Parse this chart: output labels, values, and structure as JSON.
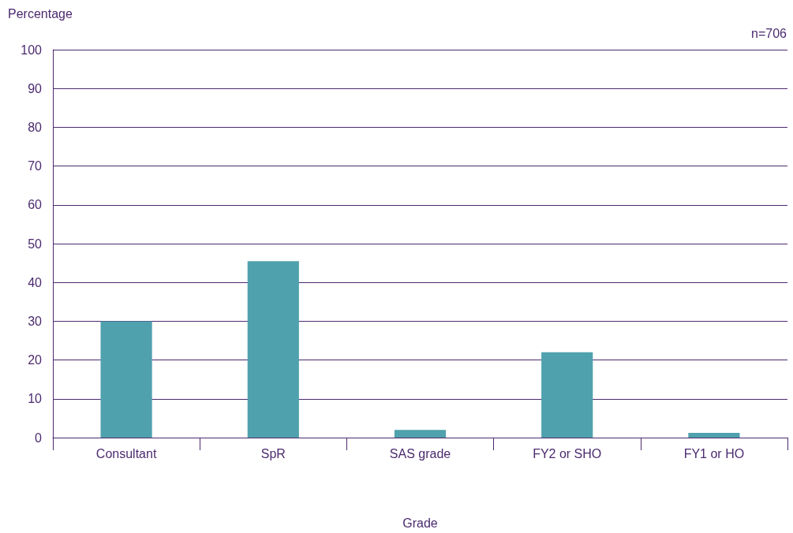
{
  "chart_data": {
    "type": "bar",
    "ylabel": "Percentage",
    "xlabel": "Grade",
    "categories": [
      "Consultant",
      "SpR",
      "SAS grade",
      "FY2 or SHO",
      "FY1 or HO"
    ],
    "values": [
      30,
      45.5,
      2,
      22,
      1.2
    ],
    "color": "#4fa1ad",
    "ylim": [
      0,
      100
    ],
    "yticks": [
      0,
      10,
      20,
      30,
      40,
      50,
      60,
      70,
      80,
      90,
      100
    ],
    "grid": "y",
    "annotations": [
      "n=706"
    ]
  }
}
